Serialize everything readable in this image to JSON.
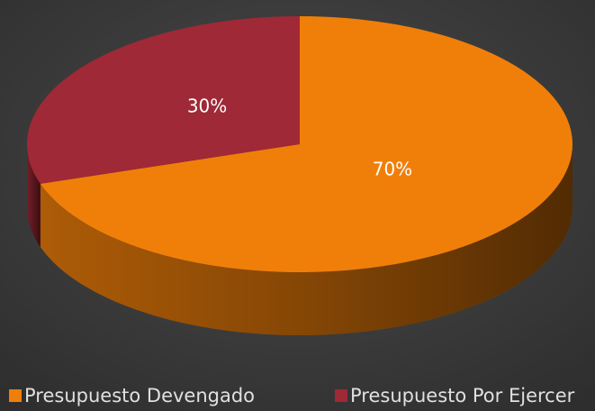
{
  "chart_data": {
    "type": "pie",
    "categories": [
      "Presupuesto Devengado",
      "Presupuesto Por Ejercer"
    ],
    "values": [
      70,
      30
    ],
    "value_labels": [
      "70%",
      "30%"
    ],
    "colors": [
      "#f07f09",
      "#9f2936"
    ]
  }
}
